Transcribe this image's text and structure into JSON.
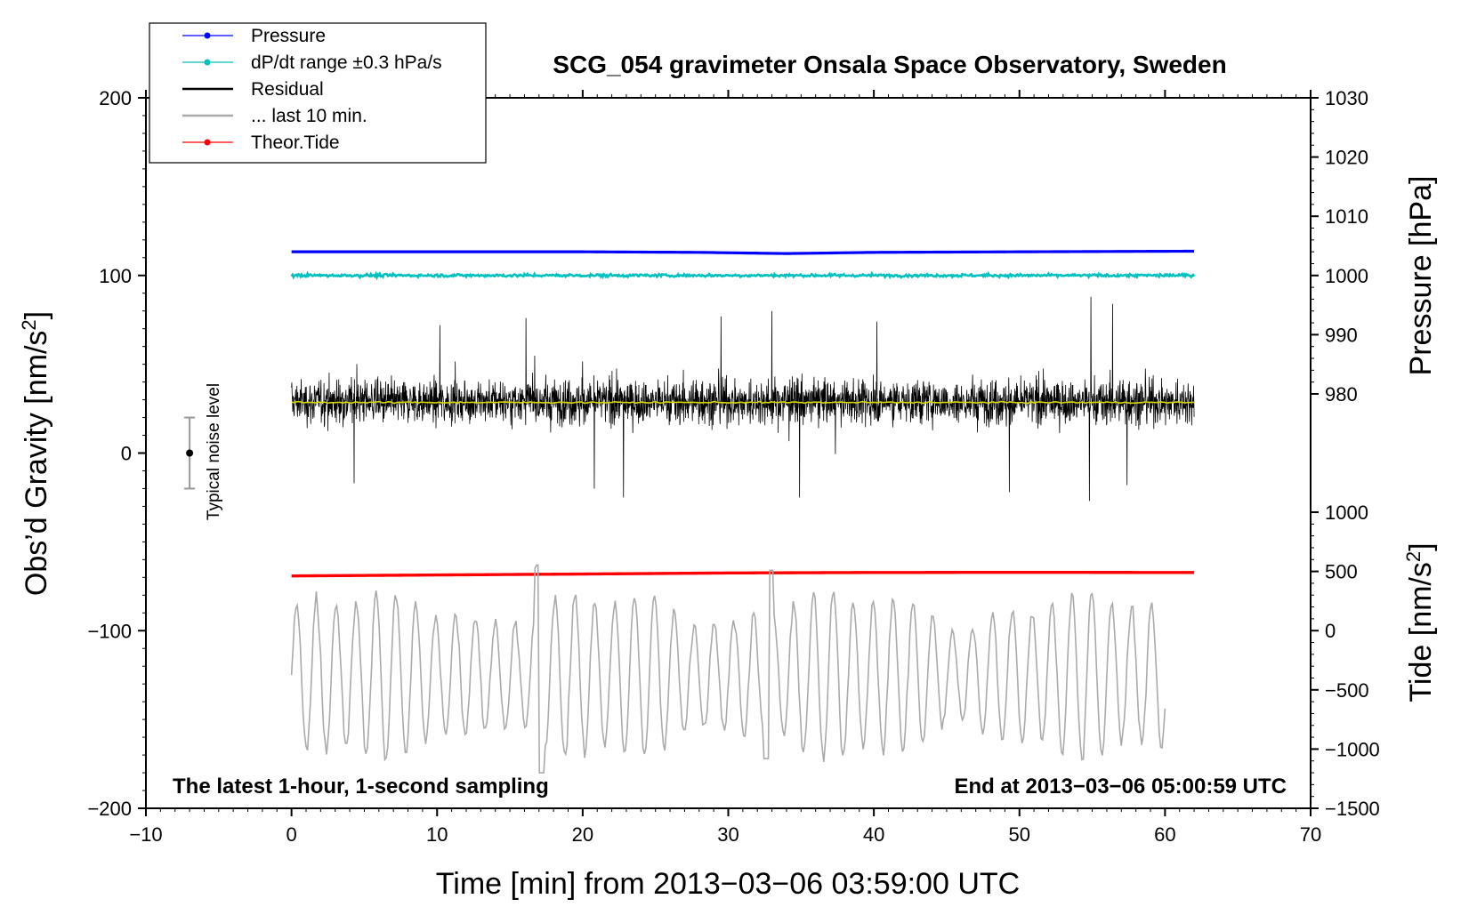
{
  "chart_data": {
    "type": "line",
    "title": "SCG_054 gravimeter Onsala Space Observatory, Sweden",
    "xlabel": "Time [min] from 2013−03−06 03:59:00 UTC",
    "xlim": [
      -10,
      70
    ],
    "xticks": [
      -10,
      0,
      10,
      20,
      30,
      40,
      50,
      60,
      70
    ],
    "xtick_labels": [
      "−10",
      "0",
      "10",
      "20",
      "30",
      "40",
      "50",
      "60",
      "70"
    ],
    "left_axis": {
      "label_prefix": "Obs’d Gravity [nm/s",
      "label_sup": "2",
      "label_suffix": "]",
      "ylim": [
        -200,
        200
      ],
      "ticks": [
        -200,
        -100,
        0,
        100,
        200
      ],
      "tick_labels": [
        "−200",
        "−100",
        "0",
        "100",
        "200"
      ]
    },
    "pressure_axis": {
      "label": "Pressure [hPa]",
      "ticks": [
        980,
        990,
        1000,
        1010,
        1020,
        1030
      ],
      "tick_labels": [
        "980",
        "990",
        "1000",
        "1010",
        "1020",
        "1030"
      ],
      "gravity_at_980": 33.3,
      "gravity_at_1030": 200
    },
    "tide_axis": {
      "label_prefix": "Tide [nm/s",
      "label_sup": "2",
      "label_suffix": "]",
      "ticks": [
        -1500,
        -1000,
        -500,
        0,
        500,
        1000
      ],
      "tick_labels": [
        "−1500",
        "−1000",
        "−500",
        "0",
        "500",
        "1000"
      ],
      "gravity_at_minus1500": -200,
      "gravity_at_1000": -33.3
    },
    "legend": [
      {
        "label": "Pressure",
        "color": "#0000ff",
        "marker": true
      },
      {
        "label": "dP/dt range ±0.3 hPa/s",
        "color": "#00c0c0",
        "marker": true
      },
      {
        "label": "Residual",
        "color": "#000000",
        "marker": false
      },
      {
        "label": "... last 10 min.",
        "color": "#aaaaaa",
        "marker": false
      },
      {
        "label": "Theor.Tide",
        "color": "#ff0000",
        "marker": true
      }
    ],
    "series": [
      {
        "name": "Pressure",
        "color": "#0000ff",
        "unit": "hPa",
        "x_range": [
          0,
          62
        ],
        "points": [
          [
            0,
            1004.0
          ],
          [
            10,
            1004.0
          ],
          [
            20,
            1004.0
          ],
          [
            28,
            1003.9
          ],
          [
            34,
            1003.7
          ],
          [
            40,
            1003.9
          ],
          [
            50,
            1004.0
          ],
          [
            62,
            1004.1
          ]
        ]
      },
      {
        "name": "dP/dt range ±0.3 hPa/s",
        "color": "#00c0c0",
        "unit": "nm/s^2 (plotted)",
        "x_range": [
          0,
          62
        ],
        "level": 100,
        "spread": 1.5
      },
      {
        "name": "Residual",
        "color": "#000000",
        "unit": "nm/s^2",
        "x_range": [
          0,
          62
        ],
        "mean": 29,
        "spread_min": -27,
        "spread_max": 88
      },
      {
        "name": "Residual mean",
        "color": "#d8d800",
        "unit": "nm/s^2",
        "x_range": [
          0,
          62
        ],
        "level": 28.5
      },
      {
        "name": "... last 10 min.",
        "color": "#aaaaaa",
        "unit": "nm/s^2 (plotted)",
        "x_range": [
          0,
          60
        ],
        "mean": -125,
        "min": -180,
        "max": -63
      },
      {
        "name": "Theor.Tide",
        "color": "#ff0000",
        "unit": "nm/s^2 (tide axis)",
        "x_range": [
          0,
          62
        ],
        "points": [
          [
            0,
            462
          ],
          [
            10,
            470
          ],
          [
            20,
            478
          ],
          [
            30,
            487
          ],
          [
            40,
            491
          ],
          [
            50,
            492
          ],
          [
            62,
            491
          ]
        ]
      }
    ],
    "noise_bar": {
      "label": "Typical noise level",
      "x": -7,
      "center": 0,
      "half_range": 20
    },
    "annotation_left": "The latest 1-hour, 1-second sampling",
    "annotation_right": "End at 2013−03−06 05:00:59 UTC"
  }
}
